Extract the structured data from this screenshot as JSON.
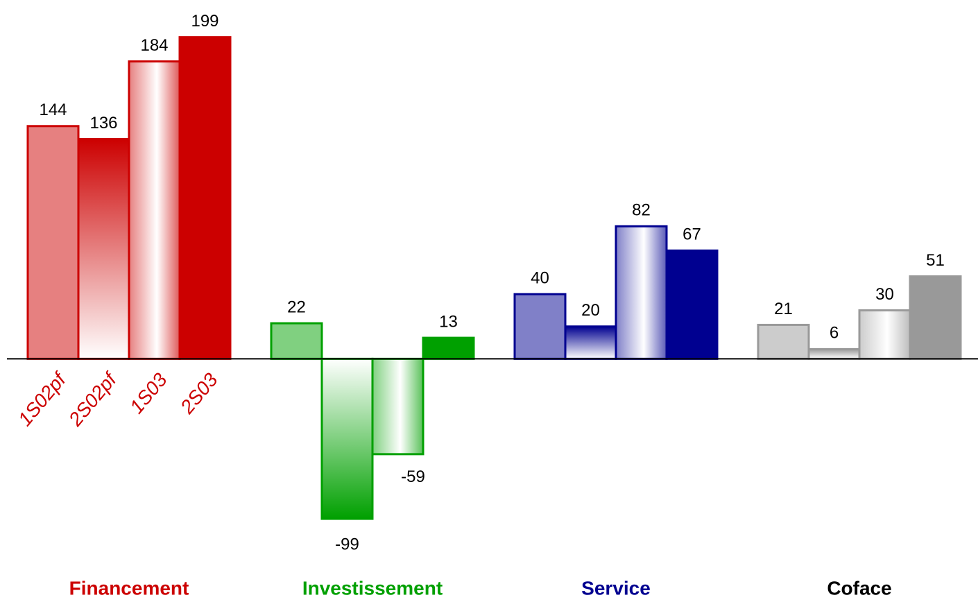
{
  "chart_data": {
    "type": "bar",
    "categories": [
      "Financement",
      "Investissement",
      "Service",
      "Coface"
    ],
    "colors": [
      "#cc0000",
      "#00a000",
      "#000090",
      "#999999"
    ],
    "label_colors": [
      "#cc0000",
      "#00a000",
      "#000090",
      "#000000"
    ],
    "series": [
      {
        "name": "1S02pf",
        "values": [
          144,
          22,
          40,
          21
        ]
      },
      {
        "name": "2S02pf",
        "values": [
          136,
          -99,
          20,
          6
        ]
      },
      {
        "name": "1S03",
        "values": [
          184,
          -59,
          82,
          30
        ]
      },
      {
        "name": "2S03",
        "values": [
          199,
          13,
          67,
          51
        ]
      }
    ],
    "ylim": [
      -120,
      210
    ]
  }
}
